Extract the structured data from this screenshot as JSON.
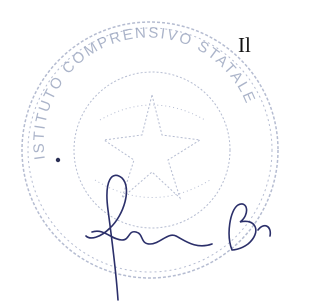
{
  "document": {
    "heading": "Il",
    "stamp": {
      "text": "ISTITUTO COMPRENSIVO STATALE"
    }
  }
}
